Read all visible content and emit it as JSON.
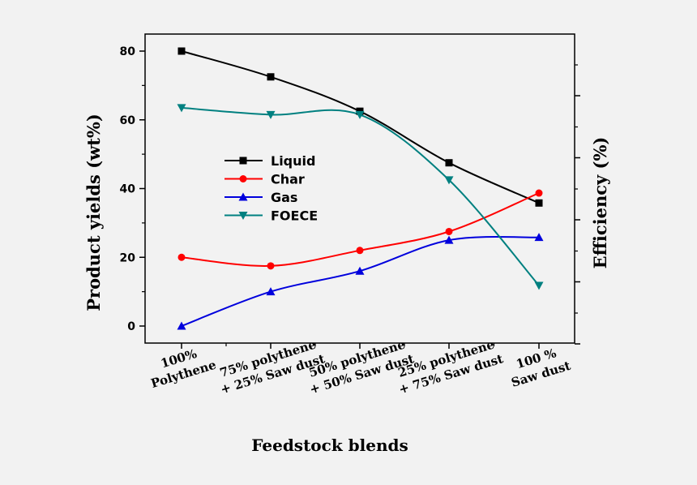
{
  "chart_data": {
    "type": "line",
    "xlabel": "Feedstock blends",
    "ylabel": "Product yields (wt%)",
    "y2label": "Efficiency (%)",
    "ylim": [
      -5,
      85
    ],
    "yticks": [
      0,
      20,
      40,
      60,
      80
    ],
    "grid": false,
    "legend_position": "center-left",
    "categories": [
      [
        "100%",
        "Polythene"
      ],
      [
        "75% polythene",
        "+ 25% Saw dust"
      ],
      [
        "50% polythene",
        "+ 50% Saw dust"
      ],
      [
        "25% polythene",
        "+ 75% Saw dust"
      ],
      [
        "100 %",
        "Saw dust"
      ]
    ],
    "series": [
      {
        "name": "Liquid",
        "color": "#000000",
        "marker": "square",
        "values": [
          80,
          72.5,
          62.5,
          47.5,
          35.8
        ]
      },
      {
        "name": "Char",
        "color": "#ff0000",
        "marker": "circle",
        "values": [
          20,
          17.5,
          22,
          27.5,
          38.7
        ]
      },
      {
        "name": "Gas",
        "color": "#0000dd",
        "marker": "triangle-up",
        "values": [
          0,
          10,
          16,
          25,
          25.8
        ]
      },
      {
        "name": "FOECE",
        "color": "#008080",
        "marker": "triangle-down",
        "values": [
          63.5,
          61.5,
          61.5,
          42.5,
          11.8
        ]
      }
    ]
  }
}
